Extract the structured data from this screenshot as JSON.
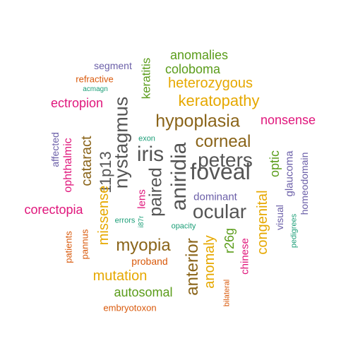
{
  "colors": {
    "gray": "#555555",
    "brown": "#8a6419",
    "gold": "#e6a800",
    "green": "#5a9c1a",
    "magenta": "#e0177c",
    "purple": "#6b5fa8",
    "orange": "#d9590b",
    "teal": "#1b9e77"
  },
  "words": [
    {
      "text": "nystagmus",
      "color": "gray"
    },
    {
      "text": "aniridia",
      "color": "gray"
    },
    {
      "text": "foveal",
      "color": "gray"
    },
    {
      "text": "iris",
      "color": "gray"
    },
    {
      "text": "peters",
      "color": "gray"
    },
    {
      "text": "ocular",
      "color": "gray"
    },
    {
      "text": "paired",
      "color": "gray"
    },
    {
      "text": "11p13",
      "color": "gray"
    },
    {
      "text": "hypoplasia",
      "color": "brown"
    },
    {
      "text": "corneal",
      "color": "brown"
    },
    {
      "text": "anterior",
      "color": "brown"
    },
    {
      "text": "myopia",
      "color": "brown"
    },
    {
      "text": "cataract",
      "color": "brown"
    },
    {
      "text": "keratopathy",
      "color": "gold"
    },
    {
      "text": "heterozygous",
      "color": "gold"
    },
    {
      "text": "congenital",
      "color": "gold"
    },
    {
      "text": "anomaly",
      "color": "gold"
    },
    {
      "text": "mutation",
      "color": "gold"
    },
    {
      "text": "missense",
      "color": "gold"
    },
    {
      "text": "anomalies",
      "color": "green"
    },
    {
      "text": "coloboma",
      "color": "green"
    },
    {
      "text": "keratitis",
      "color": "green"
    },
    {
      "text": "optic",
      "color": "green"
    },
    {
      "text": "r26g",
      "color": "green"
    },
    {
      "text": "autosomal",
      "color": "green"
    },
    {
      "text": "ectropion",
      "color": "magenta"
    },
    {
      "text": "nonsense",
      "color": "magenta"
    },
    {
      "text": "corectopia",
      "color": "magenta"
    },
    {
      "text": "ophthalmic",
      "color": "magenta"
    },
    {
      "text": "lens",
      "color": "magenta"
    },
    {
      "text": "chinese",
      "color": "magenta"
    },
    {
      "text": "segment",
      "color": "purple"
    },
    {
      "text": "affected",
      "color": "purple"
    },
    {
      "text": "dominant",
      "color": "purple"
    },
    {
      "text": "glaucoma",
      "color": "purple"
    },
    {
      "text": "homeodomain",
      "color": "purple"
    },
    {
      "text": "visual",
      "color": "purple"
    },
    {
      "text": "refractive",
      "color": "orange"
    },
    {
      "text": "patients",
      "color": "orange"
    },
    {
      "text": "pannus",
      "color": "orange"
    },
    {
      "text": "proband",
      "color": "orange"
    },
    {
      "text": "embryotoxon",
      "color": "orange"
    },
    {
      "text": "bilateral",
      "color": "orange"
    },
    {
      "text": "acmagn",
      "color": "teal"
    },
    {
      "text": "exon",
      "color": "teal"
    },
    {
      "text": "errors",
      "color": "teal"
    },
    {
      "text": "opacity",
      "color": "teal"
    },
    {
      "text": "i87r",
      "color": "teal"
    },
    {
      "text": "pedigrees",
      "color": "teal"
    }
  ]
}
